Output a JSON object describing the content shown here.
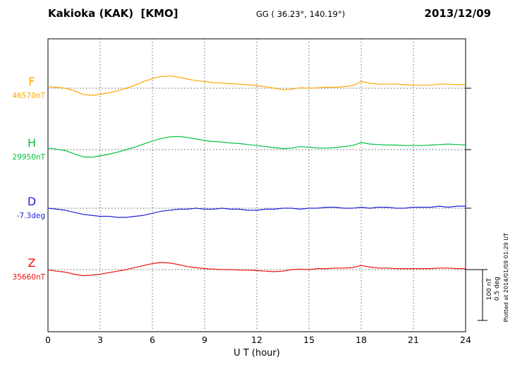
{
  "chart_data": {
    "type": "line",
    "title": "Kakioka (KAK)  [KMO]",
    "subtitle": "GG ( 36.23°, 140.19°)",
    "date": "2013/12/09",
    "xlabel": "U T (hour)",
    "x_range": [
      0,
      24
    ],
    "x_ticks": [
      0,
      3,
      6,
      9,
      12,
      15,
      18,
      21,
      24
    ],
    "x_step_hours": 0.5,
    "grid": "dotted vertical every 3 hours, dotted horizontal baseline per component",
    "legend_position": "left margin, per-trace colored labels",
    "plotted_at": "Plotted at 2014/01/09 01:29 UT",
    "scale_bar": {
      "nt": 100,
      "deg": 0.5,
      "nt_label": "100 nT",
      "deg_label": "0.5 deg"
    },
    "series": [
      {
        "name": "F",
        "label": "F",
        "baseline_label": "46570nT",
        "baseline": 46570,
        "unit": "nT",
        "color": "#ffa500",
        "offsets": [
          3,
          2,
          0,
          -5,
          -12,
          -14,
          -12,
          -9,
          -5,
          0,
          6,
          13,
          19,
          23,
          24,
          22,
          18,
          15,
          13,
          11,
          10,
          9,
          8,
          7,
          5,
          3,
          0,
          -3,
          -2,
          1,
          0,
          1,
          2,
          2,
          3,
          5,
          13,
          10,
          8,
          8,
          8,
          7,
          6,
          6,
          6,
          8,
          8,
          7,
          7
        ]
      },
      {
        "name": "H",
        "label": "H",
        "baseline_label": "29950nT",
        "baseline": 29950,
        "unit": "nT",
        "color": "#00c040",
        "offsets": [
          3,
          1,
          -2,
          -8,
          -14,
          -15,
          -12,
          -9,
          -5,
          0,
          5,
          11,
          17,
          22,
          25,
          26,
          24,
          21,
          18,
          16,
          15,
          13,
          12,
          10,
          8,
          6,
          4,
          2,
          3,
          6,
          5,
          3,
          3,
          4,
          6,
          8,
          14,
          11,
          10,
          9,
          9,
          8,
          8,
          8,
          9,
          10,
          11,
          10,
          9
        ]
      },
      {
        "name": "D",
        "label": "D",
        "baseline_label": "-7.3deg",
        "baseline": -7.3,
        "unit": "deg",
        "color": "#2222dd",
        "offsets": [
          0,
          -0.01,
          -0.02,
          -0.04,
          -0.06,
          -0.07,
          -0.08,
          -0.08,
          -0.09,
          -0.09,
          -0.08,
          -0.07,
          -0.05,
          -0.03,
          -0.02,
          -0.01,
          -0.01,
          0,
          -0.01,
          -0.01,
          0,
          -0.01,
          -0.01,
          -0.02,
          -0.02,
          -0.01,
          -0.01,
          0,
          0,
          -0.01,
          0,
          0,
          0.01,
          0.01,
          0,
          0,
          0.01,
          0,
          0.01,
          0.01,
          0,
          0,
          0.01,
          0.01,
          0.01,
          0.02,
          0.01,
          0.02,
          0.02
        ]
      },
      {
        "name": "Z",
        "label": "Z",
        "baseline_label": "35660nT",
        "baseline": 35660,
        "unit": "nT",
        "color": "#ee1111",
        "offsets": [
          -1,
          -3,
          -5,
          -9,
          -12,
          -11,
          -9,
          -6,
          -3,
          0,
          4,
          8,
          12,
          14,
          13,
          10,
          6,
          4,
          2,
          1,
          0,
          0,
          -1,
          -1,
          -2,
          -3,
          -4,
          -3,
          0,
          1,
          0,
          2,
          2,
          3,
          3,
          4,
          8,
          5,
          3,
          3,
          2,
          2,
          2,
          2,
          2,
          3,
          3,
          2,
          2
        ]
      }
    ]
  }
}
